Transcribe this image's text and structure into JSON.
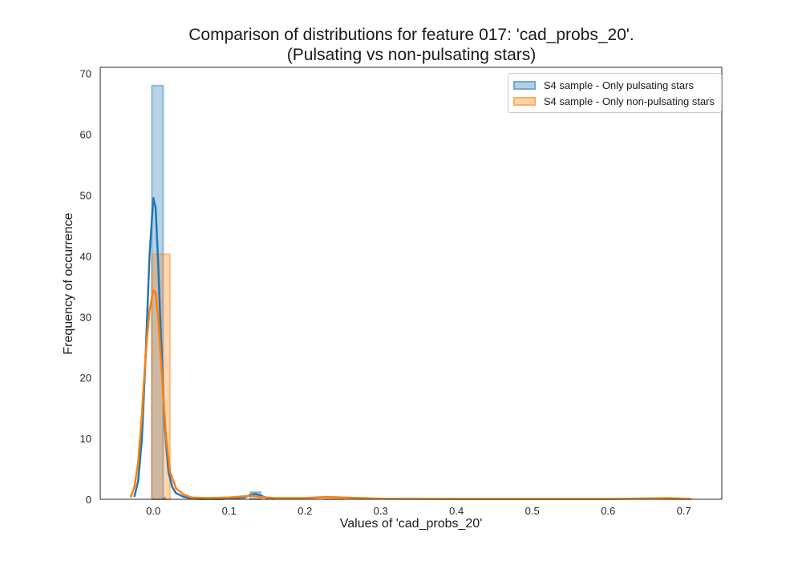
{
  "chart_data": {
    "type": "histogram",
    "title_line1": "Comparison of distributions for feature 017: 'cad_probs_20'.",
    "title_line2": "(Pulsating vs non-pulsating stars)",
    "xlabel": "Values of 'cad_probs_20'",
    "ylabel": "Frequency of occurrence",
    "xlim": [
      -0.07,
      0.75
    ],
    "ylim": [
      0,
      71
    ],
    "xticks": [
      0.0,
      0.1,
      0.2,
      0.3,
      0.4,
      0.5,
      0.6,
      0.7
    ],
    "xtick_labels": [
      "0.0",
      "0.1",
      "0.2",
      "0.3",
      "0.4",
      "0.5",
      "0.6",
      "0.7"
    ],
    "yticks": [
      0,
      10,
      20,
      30,
      40,
      50,
      60,
      70
    ],
    "ytick_labels": [
      "0",
      "10",
      "20",
      "30",
      "40",
      "50",
      "60",
      "70"
    ],
    "grid": false,
    "legend_position": "top-right",
    "series": [
      {
        "name": "S4 sample - Only pulsating stars",
        "color": "#1f77b4",
        "bins": [
          {
            "x0": -0.002,
            "x1": 0.013,
            "height": 68
          },
          {
            "x0": 0.013,
            "x1": 0.016,
            "height": 0.3
          },
          {
            "x0": 0.128,
            "x1": 0.142,
            "height": 1.2
          }
        ],
        "kde": [
          [
            -0.025,
            0.4
          ],
          [
            -0.02,
            3
          ],
          [
            -0.015,
            10
          ],
          [
            -0.01,
            24
          ],
          [
            -0.005,
            40
          ],
          [
            0.0,
            49.5
          ],
          [
            0.003,
            48
          ],
          [
            0.006,
            40
          ],
          [
            0.01,
            27
          ],
          [
            0.015,
            12
          ],
          [
            0.02,
            4.5
          ],
          [
            0.025,
            2
          ],
          [
            0.03,
            1
          ],
          [
            0.04,
            0.4
          ],
          [
            0.05,
            0.15
          ],
          [
            0.06,
            0.05
          ],
          [
            0.09,
            0.05
          ],
          [
            0.12,
            0.3
          ],
          [
            0.13,
            0.8
          ],
          [
            0.135,
            0.9
          ],
          [
            0.14,
            0.7
          ],
          [
            0.15,
            0.2
          ],
          [
            0.16,
            0.05
          ]
        ]
      },
      {
        "name": "S4 sample - Only non-pulsating stars",
        "color": "#ff7f0e",
        "bins": [
          {
            "x0": -0.002,
            "x1": 0.022,
            "height": 40.3
          },
          {
            "x0": 0.226,
            "x1": 0.25,
            "height": 0.1
          },
          {
            "x0": 0.674,
            "x1": 0.698,
            "height": 0.1
          }
        ],
        "kde": [
          [
            -0.03,
            0.3
          ],
          [
            -0.025,
            2
          ],
          [
            -0.02,
            6
          ],
          [
            -0.015,
            14
          ],
          [
            -0.01,
            24
          ],
          [
            -0.005,
            31
          ],
          [
            0.0,
            34.3
          ],
          [
            0.003,
            34
          ],
          [
            0.007,
            29
          ],
          [
            0.012,
            19
          ],
          [
            0.017,
            10
          ],
          [
            0.022,
            4.5
          ],
          [
            0.03,
            1.8
          ],
          [
            0.04,
            0.8
          ],
          [
            0.05,
            0.3
          ],
          [
            0.07,
            0.2
          ],
          [
            0.1,
            0.3
          ],
          [
            0.13,
            0.6
          ],
          [
            0.14,
            0.4
          ],
          [
            0.16,
            0.2
          ],
          [
            0.2,
            0.2
          ],
          [
            0.23,
            0.4
          ],
          [
            0.25,
            0.3
          ],
          [
            0.3,
            0.1
          ],
          [
            0.4,
            0.05
          ],
          [
            0.5,
            0.05
          ],
          [
            0.6,
            0.05
          ],
          [
            0.68,
            0.2
          ],
          [
            0.71,
            0.05
          ]
        ]
      }
    ]
  }
}
